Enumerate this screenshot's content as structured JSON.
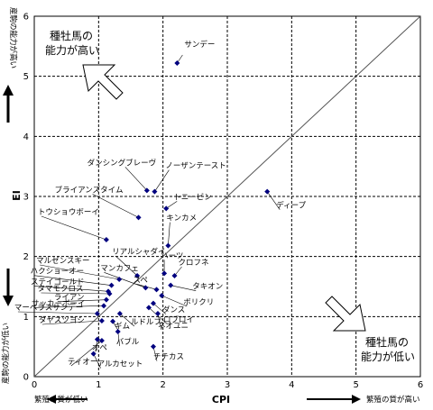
{
  "chart_data": {
    "type": "scatter",
    "xlabel": "CPI",
    "ylabel": "EI",
    "xlim": [
      0,
      6
    ],
    "ylim": [
      0,
      6
    ],
    "xticks": [
      "0",
      "1",
      "2",
      "3",
      "4",
      "5",
      "6"
    ],
    "yticks": [
      "0",
      "1",
      "2",
      "3",
      "4",
      "5",
      "6"
    ],
    "grid": true,
    "diagonal": "y=x",
    "marker_color": "#00007f",
    "points": [
      {
        "label": "サンデー",
        "x": 2.22,
        "y": 5.22
      },
      {
        "label": "ダンシングブレーヴ",
        "x": 1.75,
        "y": 3.1
      },
      {
        "label": "ノーザンテースト",
        "x": 1.87,
        "y": 3.08
      },
      {
        "label": "トニービン",
        "x": 2.05,
        "y": 2.8
      },
      {
        "label": "ブライアンズタイム",
        "x": 1.62,
        "y": 2.65
      },
      {
        "label": "ディープ",
        "x": 3.62,
        "y": 3.08
      },
      {
        "label": "トウショウボーイ",
        "x": 1.12,
        "y": 2.28
      },
      {
        "label": "キンカメ",
        "x": 2.08,
        "y": 2.18
      },
      {
        "label": "リアルシャダイ",
        "x": 1.6,
        "y": 1.68
      },
      {
        "label": "ハーツ",
        "x": 2.02,
        "y": 1.72
      },
      {
        "label": "マルゼンスキー",
        "x": 1.32,
        "y": 1.62
      },
      {
        "label": "マンカフェ",
        "x": 1.73,
        "y": 1.48
      },
      {
        "label": "クロフネ",
        "x": 2.18,
        "y": 1.68
      },
      {
        "label": "ハクショーオー",
        "x": 1.2,
        "y": 1.52
      },
      {
        "label": "スペ",
        "x": 1.9,
        "y": 1.45
      },
      {
        "label": "ステイゴールド",
        "x": 1.15,
        "y": 1.42
      },
      {
        "label": "タキオン",
        "x": 2.12,
        "y": 1.52
      },
      {
        "label": "タマモクロス",
        "x": 1.17,
        "y": 1.38
      },
      {
        "label": "ボリクリ",
        "x": 1.98,
        "y": 1.35
      },
      {
        "label": "ライアン",
        "x": 1.12,
        "y": 1.28
      },
      {
        "label": "ダンス",
        "x": 1.85,
        "y": 1.22
      },
      {
        "label": "サッカーボーイ",
        "x": 1.08,
        "y": 1.18
      },
      {
        "label": "マーベラスサンデー",
        "x": 0.98,
        "y": 1.05
      },
      {
        "label": "ルドルフ",
        "x": 1.33,
        "y": 1.05
      },
      {
        "label": "ネオユニ",
        "x": 1.92,
        "y": 1.05
      },
      {
        "label": "ロブロイ",
        "x": 1.78,
        "y": 1.15
      },
      {
        "label": "タヤスツヨシ",
        "x": 1.05,
        "y": 0.93
      },
      {
        "label": "ギム",
        "x": 1.22,
        "y": 0.92
      },
      {
        "label": "バブル",
        "x": 1.3,
        "y": 0.75
      },
      {
        "label": "オペ",
        "x": 0.98,
        "y": 0.62
      },
      {
        "label": "ティオー",
        "x": 1.05,
        "y": 0.6
      },
      {
        "label": "チチカス",
        "x": 1.85,
        "y": 0.5
      },
      {
        "label": "アルカセット",
        "x": 0.92,
        "y": 0.38
      }
    ],
    "annotations": {
      "top_left": [
        "種牡馬の",
        "能力が高い"
      ],
      "bottom_right": [
        "種牡馬の",
        "能力が低い"
      ],
      "y_top_side": "産駒の能力が高い",
      "y_bottom_side": "産駒の能力が低い",
      "x_left_side": "繁殖の質が低い",
      "x_right_side": "繁殖の質が高い"
    }
  }
}
